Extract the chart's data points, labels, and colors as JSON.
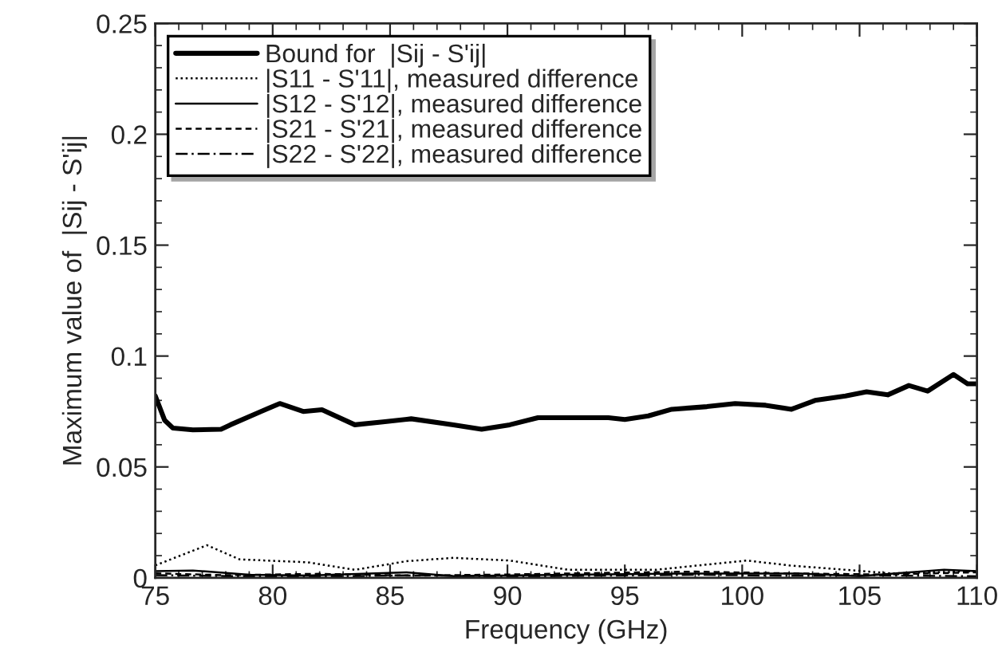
{
  "chart_data": {
    "type": "line",
    "xlabel": "Frequency (GHz)",
    "ylabel": "Maximum value of  |Sij - S'ij|",
    "xlim": [
      75,
      110
    ],
    "xticks": [
      75,
      80,
      85,
      90,
      95,
      100,
      105,
      110
    ],
    "ylim": [
      0,
      0.25
    ],
    "yticks": [
      0,
      0.05,
      0.1,
      0.15,
      0.2,
      0.25
    ],
    "grid": false,
    "legend": "top left",
    "series": [
      {
        "name": "Bound for  |Sij - S'ij|",
        "color": "#000000",
        "line_style": "solid",
        "x": [
          75,
          75.4,
          75.75,
          76.6,
          77.8,
          78.2,
          79.5,
          80.3,
          81.3,
          82.1,
          83.5,
          84.7,
          85.9,
          87.7,
          88.9,
          90.1,
          91.3,
          94.3,
          95.0,
          96.0,
          97.0,
          98.5,
          99.7,
          101.0,
          102.1,
          103.1,
          104.4,
          105.3,
          106.2,
          107.1,
          107.9,
          109.0,
          109.6,
          110
        ],
        "values": [
          0.082,
          0.071,
          0.0675,
          0.0667,
          0.067,
          0.069,
          0.075,
          0.0786,
          0.075,
          0.0758,
          0.069,
          0.0703,
          0.0717,
          0.069,
          0.067,
          0.069,
          0.0722,
          0.0722,
          0.0714,
          0.073,
          0.076,
          0.0772,
          0.0786,
          0.0778,
          0.076,
          0.08,
          0.082,
          0.0839,
          0.0825,
          0.0867,
          0.0842,
          0.0917,
          0.0875,
          0.0875
        ]
      },
      {
        "name": "|S11 - S'11|, measured difference",
        "color": "#000000",
        "line_style": "dotted",
        "x": [
          75,
          77.2,
          78.6,
          81.5,
          83.5,
          85.7,
          87.7,
          90.1,
          92.6,
          96.3,
          100.2,
          102,
          103.7,
          106.3,
          110
        ],
        "values": [
          0.0056,
          0.0147,
          0.0083,
          0.007,
          0.0036,
          0.0075,
          0.009,
          0.0078,
          0.0036,
          0.0036,
          0.0078,
          0.0056,
          0.0042,
          0.002,
          0.003
        ]
      },
      {
        "name": "|S12 - S'12|, measured difference",
        "color": "#000000",
        "line_style": "solid",
        "x": [
          75,
          76.6,
          79,
          81.5,
          85.7,
          87.7,
          92.6,
          97.5,
          102.5,
          105,
          108.6,
          110
        ],
        "values": [
          0.003,
          0.0033,
          0.0014,
          0.001,
          0.0025,
          0.0008,
          0.0014,
          0.0019,
          0.0019,
          0.0008,
          0.0036,
          0.003
        ]
      },
      {
        "name": "|S21 - S'21|, measured difference",
        "color": "#000000",
        "line_style": "dashed",
        "x": [
          75,
          78,
          82,
          86,
          90,
          94,
          98,
          102,
          106,
          110
        ],
        "values": [
          0.002,
          0.0012,
          0.0018,
          0.001,
          0.0015,
          0.0022,
          0.0028,
          0.002,
          0.0015,
          0.0025
        ]
      },
      {
        "name": "|S22 - S'22|, measured difference",
        "color": "#000000",
        "line_style": "dashdot",
        "x": [
          75,
          78,
          82,
          86,
          90,
          94,
          98,
          102,
          106,
          110
        ],
        "values": [
          0.0012,
          0.0008,
          0.0005,
          0.0012,
          0.0006,
          0.001,
          0.0014,
          0.0009,
          0.0011,
          0.0007
        ]
      }
    ]
  }
}
